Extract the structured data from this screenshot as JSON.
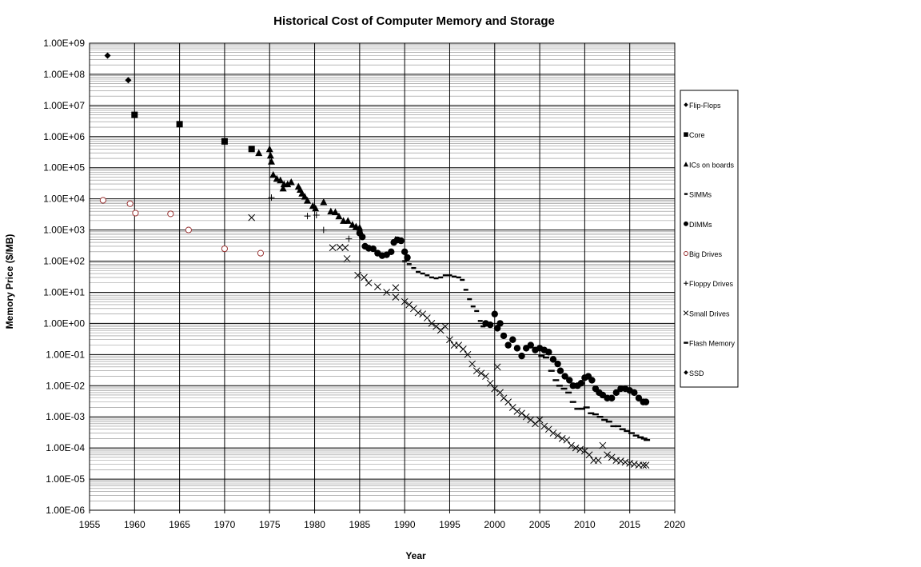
{
  "chart_data": {
    "type": "scatter",
    "title": "Historical Cost of Computer Memory and Storage",
    "xlabel": "Year",
    "ylabel": "Memory Price ($/MB)",
    "xlim": [
      1955,
      2020
    ],
    "ylim": [
      1e-06,
      1000000000.0
    ],
    "yscale": "log",
    "grid": true,
    "legend_position": "right",
    "x_ticks": [
      "1955",
      "1960",
      "1965",
      "1970",
      "1975",
      "1980",
      "1985",
      "1990",
      "1995",
      "2000",
      "2005",
      "2010",
      "2015",
      "2020"
    ],
    "y_ticks": [
      "1.00E-06",
      "1.00E-05",
      "1.00E-04",
      "1.00E-03",
      "1.00E-02",
      "1.00E-01",
      "1.00E+00",
      "1.00E+01",
      "1.00E+02",
      "1.00E+03",
      "1.00E+04",
      "1.00E+05",
      "1.00E+06",
      "1.00E+07",
      "1.00E+08",
      "1.00E+09"
    ],
    "series": [
      {
        "name": "Flip-Flops",
        "marker": "diamond",
        "color": "#000000",
        "points": [
          [
            1957,
            400000000.0
          ],
          [
            1959.3,
            65000000.0
          ]
        ]
      },
      {
        "name": "Core",
        "marker": "square",
        "color": "#000000",
        "points": [
          [
            1960,
            5000000.0
          ],
          [
            1965,
            2500000.0
          ],
          [
            1970,
            700000.0
          ],
          [
            1973,
            400000.0
          ]
        ]
      },
      {
        "name": "ICs on boards",
        "marker": "triangle",
        "color": "#000000",
        "points": [
          [
            1973.8,
            300000.0
          ],
          [
            1975,
            400000.0
          ],
          [
            1975.1,
            250000.0
          ],
          [
            1975.2,
            160000.0
          ],
          [
            1975.4,
            60000.0
          ],
          [
            1975.8,
            45000.0
          ],
          [
            1976.2,
            40000.0
          ],
          [
            1976.6,
            30000.0
          ],
          [
            1976.5,
            22000.0
          ],
          [
            1977,
            30000.0
          ],
          [
            1977.4,
            35000.0
          ],
          [
            1978.2,
            25000.0
          ],
          [
            1978.4,
            20000.0
          ],
          [
            1978.6,
            15000.0
          ],
          [
            1978.9,
            12000.0
          ],
          [
            1979.2,
            9000.0
          ],
          [
            1979.8,
            6000.0
          ],
          [
            1980.1,
            5000.0
          ],
          [
            1981,
            8000.0
          ],
          [
            1981.8,
            4000.0
          ],
          [
            1982.3,
            3800.0
          ],
          [
            1982.7,
            2800.0
          ],
          [
            1983.2,
            2000.0
          ],
          [
            1983.7,
            2000.0
          ],
          [
            1984.2,
            1500.0
          ],
          [
            1984.6,
            1300.0
          ],
          [
            1985,
            1200.0
          ],
          [
            1989,
            500.0
          ]
        ]
      },
      {
        "name": "SIMMs",
        "marker": "dash-small",
        "color": "#000000",
        "points": [
          [
            1990,
            100
          ],
          [
            1990.5,
            80
          ],
          [
            1991,
            60
          ],
          [
            1991.5,
            45
          ],
          [
            1992,
            40
          ],
          [
            1992.5,
            35
          ],
          [
            1993,
            30
          ],
          [
            1993.5,
            28
          ],
          [
            1994,
            30
          ],
          [
            1994.5,
            35
          ],
          [
            1995,
            35
          ],
          [
            1995.5,
            32
          ],
          [
            1996,
            30
          ],
          [
            1996.4,
            25
          ],
          [
            1996.8,
            12
          ],
          [
            1997.2,
            6
          ],
          [
            1997.6,
            3.5
          ],
          [
            1998,
            2.5
          ],
          [
            1998.4,
            1.2
          ],
          [
            1998.7,
            0.8
          ]
        ]
      },
      {
        "name": "DIMMs",
        "marker": "circle",
        "color": "#000000",
        "points": [
          [
            1985,
            800
          ],
          [
            1985.3,
            600
          ],
          [
            1985.6,
            300
          ],
          [
            1986,
            260
          ],
          [
            1986.5,
            250
          ],
          [
            1987,
            180
          ],
          [
            1987.5,
            150
          ],
          [
            1988,
            160
          ],
          [
            1988.5,
            200
          ],
          [
            1988.8,
            400
          ],
          [
            1989.2,
            480
          ],
          [
            1989.6,
            450
          ],
          [
            1990,
            200
          ],
          [
            1990.3,
            130
          ],
          [
            1999,
            1.0
          ],
          [
            1999.5,
            0.9
          ],
          [
            2000,
            2.0
          ],
          [
            2000.3,
            0.7
          ],
          [
            2000.6,
            1.0
          ],
          [
            2001,
            0.4
          ],
          [
            2001.5,
            0.2
          ],
          [
            2002,
            0.3
          ],
          [
            2002.5,
            0.16
          ],
          [
            2003,
            0.09
          ],
          [
            2003.5,
            0.16
          ],
          [
            2004,
            0.2
          ],
          [
            2004.5,
            0.14
          ],
          [
            2005,
            0.16
          ],
          [
            2005.5,
            0.14
          ],
          [
            2006,
            0.12
          ],
          [
            2006.5,
            0.07
          ],
          [
            2007,
            0.05
          ],
          [
            2007.3,
            0.03
          ],
          [
            2007.8,
            0.02
          ],
          [
            2008.3,
            0.015
          ],
          [
            2008.7,
            0.01
          ],
          [
            2009.2,
            0.01
          ],
          [
            2009.6,
            0.012
          ],
          [
            2010,
            0.018
          ],
          [
            2010.4,
            0.02
          ],
          [
            2010.8,
            0.015
          ],
          [
            2011.2,
            0.008
          ],
          [
            2011.6,
            0.006
          ],
          [
            2012,
            0.005
          ],
          [
            2012.5,
            0.004
          ],
          [
            2013,
            0.004
          ],
          [
            2013.5,
            0.006
          ],
          [
            2014,
            0.008
          ],
          [
            2014.5,
            0.008
          ],
          [
            2015,
            0.007
          ],
          [
            2015.5,
            0.006
          ],
          [
            2016,
            0.004
          ],
          [
            2016.5,
            0.003
          ],
          [
            2016.8,
            0.003
          ]
        ]
      },
      {
        "name": "Big Drives",
        "marker": "circle-open",
        "color": "#993333",
        "points": [
          [
            1956.5,
            9000
          ],
          [
            1959.5,
            7000
          ],
          [
            1960.1,
            3500
          ],
          [
            1964,
            3300
          ],
          [
            1966,
            1000
          ],
          [
            1970,
            250
          ],
          [
            1974,
            180
          ]
        ]
      },
      {
        "name": "Floppy Drives",
        "marker": "plus",
        "color": "#000000",
        "points": [
          [
            1975.2,
            11000
          ],
          [
            1979.2,
            2800
          ],
          [
            1980.2,
            3000
          ],
          [
            1981,
            1000
          ],
          [
            1983.8,
            520
          ]
        ]
      },
      {
        "name": "Small Drives",
        "marker": "x",
        "color": "#000000",
        "points": [
          [
            1973,
            2500
          ],
          [
            1982,
            270
          ],
          [
            1982.8,
            280
          ],
          [
            1983.4,
            270
          ],
          [
            1983.6,
            120
          ],
          [
            1984.8,
            35
          ],
          [
            1985.5,
            30
          ],
          [
            1986,
            20
          ],
          [
            1987,
            15
          ],
          [
            1988,
            10
          ],
          [
            1989,
            14
          ],
          [
            1989,
            7
          ],
          [
            1990,
            5
          ],
          [
            1990.5,
            4
          ],
          [
            1991,
            3
          ],
          [
            1991.5,
            2.2
          ],
          [
            1992,
            2
          ],
          [
            1992.5,
            1.5
          ],
          [
            1993,
            1.0
          ],
          [
            1993.5,
            0.8
          ],
          [
            1994,
            0.6
          ],
          [
            1994.5,
            0.8
          ],
          [
            1995,
            0.3
          ],
          [
            1995.5,
            0.2
          ],
          [
            1996,
            0.2
          ],
          [
            1996.5,
            0.15
          ],
          [
            1997,
            0.1
          ],
          [
            1997.5,
            0.05
          ],
          [
            1998,
            0.03
          ],
          [
            1998.5,
            0.025
          ],
          [
            1999,
            0.02
          ],
          [
            1999.5,
            0.012
          ],
          [
            2000,
            0.008
          ],
          [
            2000.3,
            0.04
          ],
          [
            2000.6,
            0.006
          ],
          [
            2001,
            0.004
          ],
          [
            2001.5,
            0.003
          ],
          [
            2002,
            0.002
          ],
          [
            2002.5,
            0.0015
          ],
          [
            2003,
            0.0013
          ],
          [
            2003.5,
            0.001
          ],
          [
            2004,
            0.0008
          ],
          [
            2004.5,
            0.0006
          ],
          [
            2005,
            0.0008
          ],
          [
            2005.5,
            0.0005
          ],
          [
            2006,
            0.0004
          ],
          [
            2006.5,
            0.0003
          ],
          [
            2007,
            0.00025
          ],
          [
            2007.5,
            0.0002
          ],
          [
            2008,
            0.00018
          ],
          [
            2008.5,
            0.00012
          ],
          [
            2009,
            0.0001
          ],
          [
            2009.5,
            9e-05
          ],
          [
            2010,
            8e-05
          ],
          [
            2010.5,
            6e-05
          ],
          [
            2011,
            4e-05
          ],
          [
            2011.5,
            4e-05
          ],
          [
            2012,
            0.00012
          ],
          [
            2012.5,
            6e-05
          ],
          [
            2013,
            5e-05
          ],
          [
            2013.5,
            4e-05
          ],
          [
            2014,
            3.8e-05
          ],
          [
            2014.5,
            3.5e-05
          ],
          [
            2015,
            3.2e-05
          ],
          [
            2015.5,
            3e-05
          ],
          [
            2016,
            2.8e-05
          ],
          [
            2016.5,
            2.8e-05
          ],
          [
            2016.8,
            2.8e-05
          ]
        ]
      },
      {
        "name": "Flash Memory",
        "marker": "dash",
        "color": "#000000",
        "points": [
          [
            2005.2,
            0.09
          ],
          [
            2005.7,
            0.08
          ],
          [
            2006.3,
            0.03
          ],
          [
            2006.8,
            0.015
          ],
          [
            2007.2,
            0.01
          ],
          [
            2007.7,
            0.008
          ],
          [
            2008.2,
            0.006
          ],
          [
            2008.7,
            0.003
          ],
          [
            2009.2,
            0.0018
          ],
          [
            2009.7,
            0.0018
          ],
          [
            2010.2,
            0.002
          ],
          [
            2010.7,
            0.0013
          ],
          [
            2011.2,
            0.0012
          ],
          [
            2011.7,
            0.001
          ],
          [
            2012.2,
            0.0008
          ],
          [
            2012.7,
            0.0007
          ],
          [
            2013.2,
            0.0005
          ],
          [
            2013.7,
            0.0005
          ],
          [
            2014.2,
            0.0004
          ],
          [
            2014.7,
            0.00035
          ],
          [
            2015.2,
            0.0003
          ],
          [
            2015.7,
            0.00025
          ],
          [
            2016.2,
            0.00022
          ],
          [
            2016.6,
            0.0002
          ],
          [
            2016.9,
            0.00018
          ]
        ]
      },
      {
        "name": "SSD",
        "marker": "diamond",
        "color": "#000000",
        "points": []
      }
    ]
  }
}
